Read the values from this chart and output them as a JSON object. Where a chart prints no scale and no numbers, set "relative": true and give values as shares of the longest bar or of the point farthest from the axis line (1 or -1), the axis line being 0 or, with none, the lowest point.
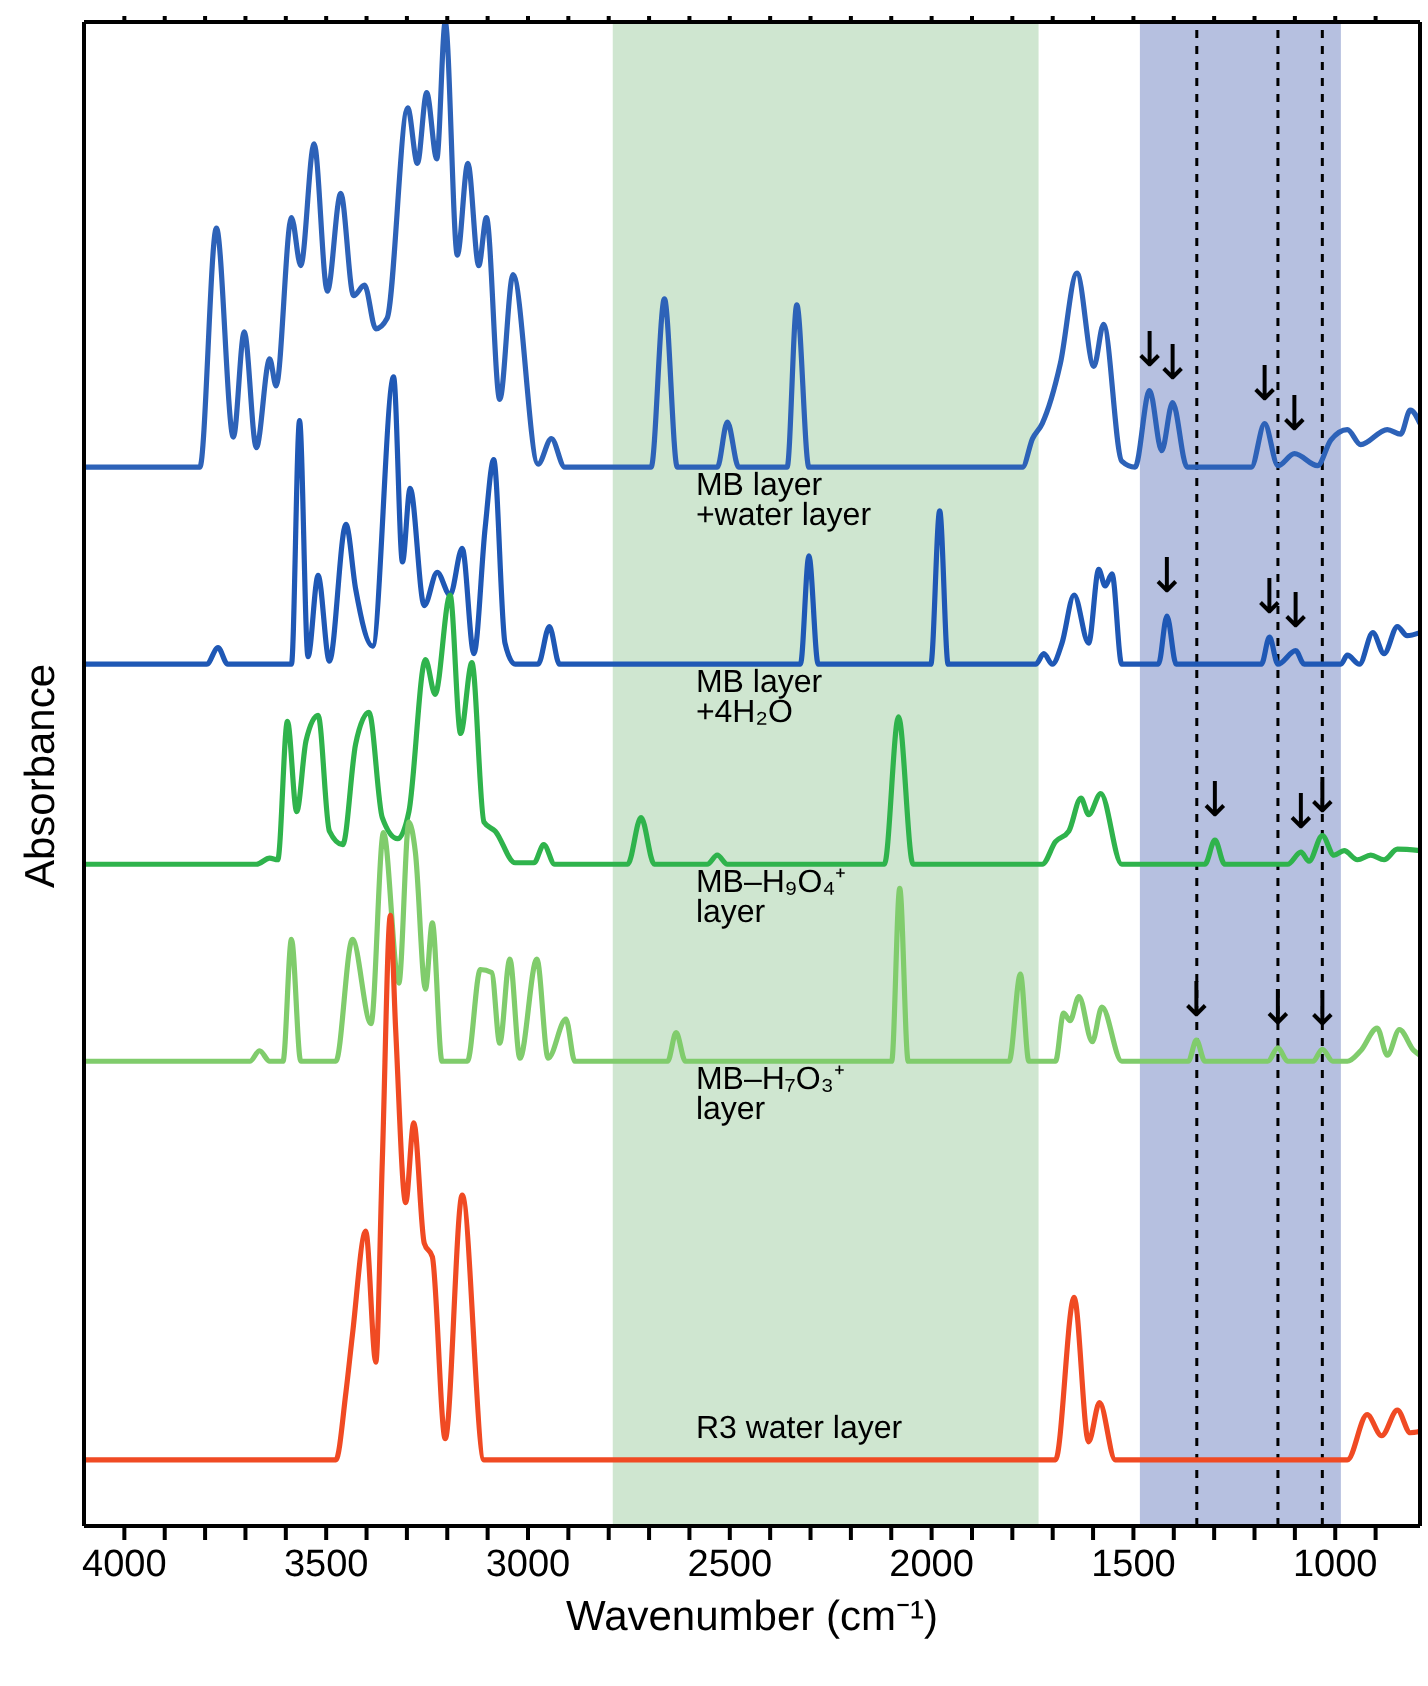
{
  "chart_data": {
    "type": "line",
    "relative": true,
    "xlabel": "Wavenumber (cm⁻¹)",
    "ylabel": "Absorbance",
    "xlim": [
      4100,
      790
    ],
    "xticks": [
      {
        "value": 4000,
        "label": "4000"
      },
      {
        "value": 3900,
        "label": null
      },
      {
        "value": 3800,
        "label": null
      },
      {
        "value": 3700,
        "label": null
      },
      {
        "value": 3600,
        "label": null
      },
      {
        "value": 3500,
        "label": "3500"
      },
      {
        "value": 3400,
        "label": null
      },
      {
        "value": 3300,
        "label": null
      },
      {
        "value": 3200,
        "label": null
      },
      {
        "value": 3100,
        "label": null
      },
      {
        "value": 3000,
        "label": "3000"
      },
      {
        "value": 2900,
        "label": null
      },
      {
        "value": 2800,
        "label": null
      },
      {
        "value": 2700,
        "label": null
      },
      {
        "value": 2600,
        "label": null
      },
      {
        "value": 2500,
        "label": "2500"
      },
      {
        "value": 2400,
        "label": null
      },
      {
        "value": 2300,
        "label": null
      },
      {
        "value": 2200,
        "label": null
      },
      {
        "value": 2100,
        "label": null
      },
      {
        "value": 2000,
        "label": "2000"
      },
      {
        "value": 1900,
        "label": null
      },
      {
        "value": 1800,
        "label": null
      },
      {
        "value": 1700,
        "label": null
      },
      {
        "value": 1600,
        "label": null
      },
      {
        "value": 1500,
        "label": "1500"
      },
      {
        "value": 1400,
        "label": null
      },
      {
        "value": 1300,
        "label": null
      },
      {
        "value": 1200,
        "label": null
      },
      {
        "value": 1100,
        "label": null
      },
      {
        "value": 1000,
        "label": "1000"
      },
      {
        "value": 900,
        "label": null
      }
    ],
    "bands": [
      {
        "axis": "x",
        "from": 2790,
        "to": 1735,
        "color": "#cfe6d0"
      },
      {
        "axis": "x",
        "from": 1484,
        "to": 986,
        "color": "#b6c0e0"
      }
    ],
    "ref_lines": [
      {
        "axis": "x",
        "value": 1343,
        "color": "#000000",
        "line_style": "dashed"
      },
      {
        "axis": "x",
        "value": 1142,
        "color": "#000000",
        "line_style": "dashed"
      },
      {
        "axis": "x",
        "value": 1032,
        "color": "#000000",
        "line_style": "dashed"
      }
    ],
    "series": [
      {
        "color": "#2d62b8",
        "x": [
          4100,
          3813,
          3772,
          3730,
          3703,
          3673,
          3640,
          3624,
          3586,
          3563,
          3530,
          3497,
          3464,
          3432,
          3405,
          3377,
          3349,
          3298,
          3274,
          3251,
          3226,
          3205,
          3175,
          3149,
          3122,
          3103,
          3070,
          3037,
          2975,
          2942,
          2909,
          2695,
          2662,
          2630,
          2531,
          2506,
          2478,
          2358,
          2334,
          2304,
          1775,
          1750,
          1726,
          1681,
          1640,
          1598,
          1574,
          1529,
          1496,
          1460,
          1430,
          1403,
          1367,
          1208,
          1175,
          1142,
          1101,
          1044,
          1011,
          970,
          937,
          871,
          838,
          814,
          790
        ],
        "values": [
          0.704,
          0.704,
          0.863,
          0.724,
          0.794,
          0.717,
          0.776,
          0.758,
          0.87,
          0.838,
          0.919,
          0.821,
          0.886,
          0.818,
          0.825,
          0.796,
          0.803,
          0.943,
          0.906,
          0.953,
          0.909,
          1.0,
          0.845,
          0.906,
          0.838,
          0.87,
          0.749,
          0.832,
          0.706,
          0.723,
          0.704,
          0.704,
          0.816,
          0.704,
          0.704,
          0.734,
          0.704,
          0.704,
          0.812,
          0.704,
          0.704,
          0.723,
          0.733,
          0.773,
          0.833,
          0.771,
          0.799,
          0.708,
          0.704,
          0.755,
          0.715,
          0.747,
          0.704,
          0.704,
          0.733,
          0.705,
          0.713,
          0.705,
          0.722,
          0.729,
          0.719,
          0.729,
          0.726,
          0.742,
          0.733
        ]
      },
      {
        "color": "#1f58b5",
        "x": [
          4100,
          3796,
          3768,
          3744,
          3586,
          3566,
          3545,
          3520,
          3492,
          3451,
          3427,
          3385,
          3333,
          3311,
          3292,
          3257,
          3225,
          3193,
          3163,
          3134,
          3106,
          3085,
          3057,
          3032,
          2975,
          2947,
          2922,
          2325,
          2304,
          2281,
          2002,
          1980,
          1959,
          1742,
          1722,
          1701,
          1677,
          1647,
          1611,
          1586,
          1570,
          1553,
          1529,
          1438,
          1417,
          1394,
          1183,
          1163,
          1142,
          1098,
          1077,
          986,
          970,
          940,
          907,
          879,
          846,
          822,
          790
        ],
        "values": [
          0.573,
          0.573,
          0.584,
          0.573,
          0.573,
          0.735,
          0.578,
          0.632,
          0.575,
          0.666,
          0.623,
          0.585,
          0.764,
          0.641,
          0.69,
          0.612,
          0.634,
          0.619,
          0.65,
          0.58,
          0.664,
          0.709,
          0.587,
          0.573,
          0.573,
          0.598,
          0.573,
          0.573,
          0.645,
          0.573,
          0.573,
          0.675,
          0.573,
          0.573,
          0.58,
          0.573,
          0.587,
          0.619,
          0.587,
          0.636,
          0.625,
          0.633,
          0.573,
          0.573,
          0.605,
          0.573,
          0.573,
          0.591,
          0.573,
          0.582,
          0.573,
          0.573,
          0.579,
          0.573,
          0.594,
          0.58,
          0.598,
          0.592,
          0.594
        ]
      },
      {
        "color": "#2fb34c",
        "x": [
          4100,
          3673,
          3640,
          3620,
          3596,
          3573,
          3550,
          3520,
          3492,
          3459,
          3427,
          3394,
          3361,
          3323,
          3295,
          3254,
          3230,
          3193,
          3167,
          3139,
          3109,
          3081,
          3032,
          2985,
          2961,
          2934,
          2753,
          2720,
          2687,
          2556,
          2531,
          2506,
          2117,
          2082,
          2046,
          1726,
          1693,
          1660,
          1630,
          1611,
          1581,
          1529,
          1323,
          1298,
          1274,
          1118,
          1085,
          1065,
          1032,
          1003,
          978,
          945,
          912,
          879,
          846,
          790
        ],
        "values": [
          0.44,
          0.44,
          0.444,
          0.443,
          0.535,
          0.475,
          0.522,
          0.539,
          0.462,
          0.453,
          0.52,
          0.541,
          0.471,
          0.457,
          0.475,
          0.576,
          0.553,
          0.619,
          0.527,
          0.574,
          0.468,
          0.462,
          0.441,
          0.441,
          0.453,
          0.44,
          0.44,
          0.471,
          0.44,
          0.44,
          0.446,
          0.44,
          0.44,
          0.538,
          0.44,
          0.44,
          0.455,
          0.462,
          0.484,
          0.473,
          0.487,
          0.44,
          0.44,
          0.456,
          0.44,
          0.44,
          0.448,
          0.442,
          0.459,
          0.446,
          0.449,
          0.443,
          0.446,
          0.443,
          0.45,
          0.449
        ]
      },
      {
        "color": "#80cc6c",
        "x": [
          4100,
          3689,
          3665,
          3640,
          3607,
          3586,
          3563,
          3476,
          3435,
          3389,
          3358,
          3320,
          3295,
          3279,
          3254,
          3237,
          3213,
          3150,
          3118,
          3090,
          3070,
          3045,
          3020,
          2978,
          2950,
          2906,
          2884,
          2654,
          2633,
          2610,
          2099,
          2079,
          2058,
          1808,
          1780,
          1759,
          1693,
          1673,
          1657,
          1635,
          1602,
          1578,
          1529,
          1364,
          1344,
          1323,
          1167,
          1142,
          1118,
          1055,
          1032,
          1006,
          970,
          937,
          896,
          871,
          841,
          805,
          790
        ],
        "values": [
          0.309,
          0.309,
          0.316,
          0.309,
          0.309,
          0.39,
          0.309,
          0.309,
          0.39,
          0.334,
          0.461,
          0.361,
          0.468,
          0.448,
          0.357,
          0.401,
          0.309,
          0.309,
          0.37,
          0.368,
          0.321,
          0.377,
          0.311,
          0.377,
          0.311,
          0.337,
          0.309,
          0.309,
          0.328,
          0.309,
          0.309,
          0.424,
          0.309,
          0.309,
          0.367,
          0.309,
          0.309,
          0.341,
          0.336,
          0.352,
          0.322,
          0.345,
          0.309,
          0.309,
          0.323,
          0.309,
          0.309,
          0.318,
          0.309,
          0.309,
          0.317,
          0.309,
          0.309,
          0.316,
          0.331,
          0.313,
          0.33,
          0.316,
          0.313
        ]
      },
      {
        "color": "#f04a23",
        "x": [
          4100,
          3476,
          3451,
          3435,
          3402,
          3377,
          3361,
          3341,
          3328,
          3303,
          3283,
          3257,
          3237,
          3205,
          3163,
          3109,
          1693,
          1647,
          1611,
          1584,
          1545,
          970,
          921,
          885,
          846,
          814,
          790
        ],
        "values": [
          0.044,
          0.044,
          0.089,
          0.127,
          0.196,
          0.109,
          0.242,
          0.406,
          0.331,
          0.215,
          0.268,
          0.188,
          0.179,
          0.058,
          0.22,
          0.044,
          0.044,
          0.152,
          0.056,
          0.082,
          0.044,
          0.044,
          0.074,
          0.06,
          0.077,
          0.062,
          0.063
        ]
      }
    ],
    "annotations": [
      "MB layer\n+water layer",
      "MB layer\n+4H₂O",
      "MB–H₉O₄⁺\nlayer",
      "MB–H₇O₃⁺\nlayer",
      "R3 water layer",
      {
        "text": "↓",
        "x": 1460,
        "y": 0.755
      },
      {
        "text": "↓",
        "x": 1403,
        "y": 0.747
      },
      {
        "text": "↓",
        "x": 1175,
        "y": 0.733
      },
      {
        "text": "↓",
        "x": 1101,
        "y": 0.713
      },
      {
        "text": "↓",
        "x": 1417,
        "y": 0.605
      },
      {
        "text": "↓",
        "x": 1163,
        "y": 0.591
      },
      {
        "text": "↓",
        "x": 1098,
        "y": 0.582
      },
      {
        "text": "↓",
        "x": 1298,
        "y": 0.456
      },
      {
        "text": "↓",
        "x": 1085,
        "y": 0.448
      },
      {
        "text": "↓",
        "x": 1032,
        "y": 0.459
      },
      {
        "text": "↓",
        "x": 1344,
        "y": 0.323
      },
      {
        "text": "↓",
        "x": 1142,
        "y": 0.318
      },
      {
        "text": "↓",
        "x": 1032,
        "y": 0.317
      }
    ]
  }
}
